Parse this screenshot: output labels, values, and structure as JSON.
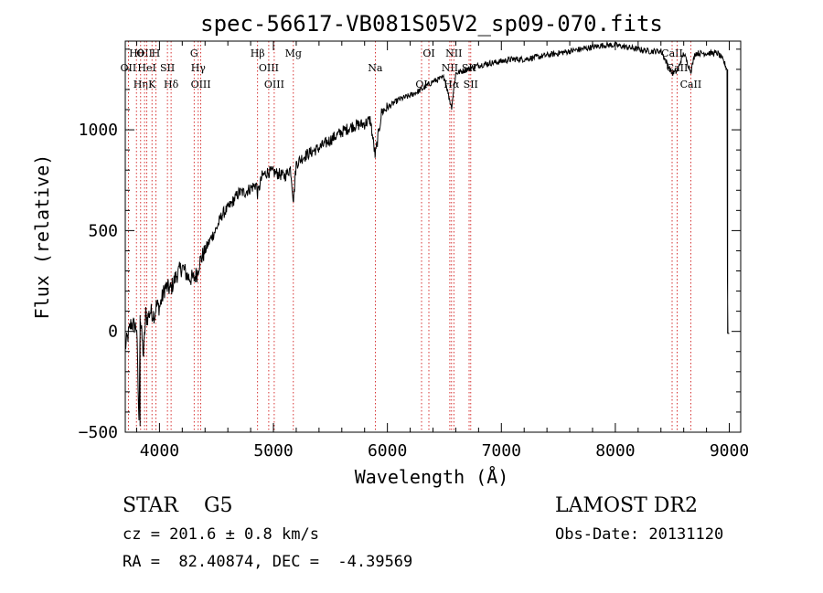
{
  "colors": {
    "axis": "#000000",
    "line": "#000000",
    "marker": "#cc0000",
    "background": "#ffffff"
  },
  "chart_data": {
    "type": "line",
    "title": "spec-56617-VB081S05V2_sp09-070.fits",
    "xlabel": "Wavelength (Å)",
    "ylabel": "Flux (relative)",
    "xlim": [
      3700,
      9100
    ],
    "ylim": [
      -500,
      1440
    ],
    "xticks": [
      4000,
      5000,
      6000,
      7000,
      8000,
      9000
    ],
    "yticks": [
      -500,
      0,
      500,
      1000
    ],
    "grid": false,
    "series": [
      {
        "x": [
          3700,
          3750,
          3800,
          3820,
          3830,
          3860,
          3880,
          3890,
          3920,
          3960,
          3970,
          4000,
          4050,
          4100,
          4150,
          4200,
          4250,
          4300,
          4330,
          4350,
          4400,
          4450,
          4500,
          4550,
          4600,
          4650,
          4700,
          4750,
          4800,
          4850,
          4861,
          4900,
          4950,
          5000,
          5050,
          5100,
          5150,
          5175,
          5200,
          5250,
          5300,
          5400,
          5500,
          5600,
          5700,
          5800,
          5850,
          5893,
          5950,
          6000,
          6100,
          6200,
          6300,
          6400,
          6500,
          6563,
          6600,
          6700,
          6800,
          6900,
          7000,
          7100,
          7200,
          7300,
          7400,
          7500,
          7600,
          7700,
          7800,
          7900,
          8000,
          8100,
          8200,
          8300,
          8400,
          8498,
          8542,
          8600,
          8662,
          8700,
          8800,
          8900,
          8950,
          8980,
          8985,
          9000
        ],
        "y": [
          -80,
          40,
          20,
          -470,
          80,
          -120,
          90,
          60,
          100,
          80,
          130,
          120,
          220,
          210,
          280,
          320,
          270,
          260,
          290,
          340,
          400,
          460,
          510,
          580,
          610,
          650,
          690,
          690,
          710,
          730,
          680,
          770,
          790,
          790,
          780,
          770,
          810,
          650,
          830,
          860,
          880,
          910,
          950,
          990,
          1020,
          1030,
          1050,
          870,
          1090,
          1110,
          1150,
          1170,
          1200,
          1240,
          1260,
          1110,
          1280,
          1300,
          1320,
          1330,
          1340,
          1350,
          1350,
          1360,
          1370,
          1380,
          1390,
          1400,
          1410,
          1420,
          1420,
          1410,
          1400,
          1390,
          1390,
          1280,
          1290,
          1380,
          1290,
          1380,
          1380,
          1380,
          1340,
          1300,
          -10,
          -10
        ]
      }
    ],
    "lines": [
      {
        "name": "Hθ",
        "x": 3798
      },
      {
        "name": "OII",
        "x": 3727
      },
      {
        "name": "Hη",
        "x": 3835
      },
      {
        "name": "OII",
        "x": 3869
      },
      {
        "name": "HeI",
        "x": 3889
      },
      {
        "name": "K",
        "x": 3934
      },
      {
        "name": "H",
        "x": 3968
      },
      {
        "name": "SII",
        "x": 4070
      },
      {
        "name": "Hδ",
        "x": 4102
      },
      {
        "name": "G",
        "x": 4304
      },
      {
        "name": "Hγ",
        "x": 4340
      },
      {
        "name": "OIII",
        "x": 4363
      },
      {
        "name": "Hβ",
        "x": 4861
      },
      {
        "name": "OIII",
        "x": 4959
      },
      {
        "name": "OIII",
        "x": 5007
      },
      {
        "name": "Mg",
        "x": 5175
      },
      {
        "name": "Na",
        "x": 5894
      },
      {
        "name": "OI",
        "x": 6300
      },
      {
        "name": "OI",
        "x": 6364
      },
      {
        "name": "NII",
        "x": 6548
      },
      {
        "name": "Hα",
        "x": 6563
      },
      {
        "name": "NII",
        "x": 6583
      },
      {
        "name": "SII",
        "x": 6717
      },
      {
        "name": "SII",
        "x": 6731
      },
      {
        "name": "CaII",
        "x": 8498
      },
      {
        "name": "CaII",
        "x": 8542
      },
      {
        "name": "CaII",
        "x": 8662
      }
    ]
  },
  "info": {
    "object": "STAR    G5",
    "velocity": "cz = 201.6 ± 0.8 km/s",
    "coords": "RA =  82.40874, DEC =  -4.39569",
    "survey": "LAMOST DR2",
    "obsdate": "Obs-Date: 20131120"
  }
}
